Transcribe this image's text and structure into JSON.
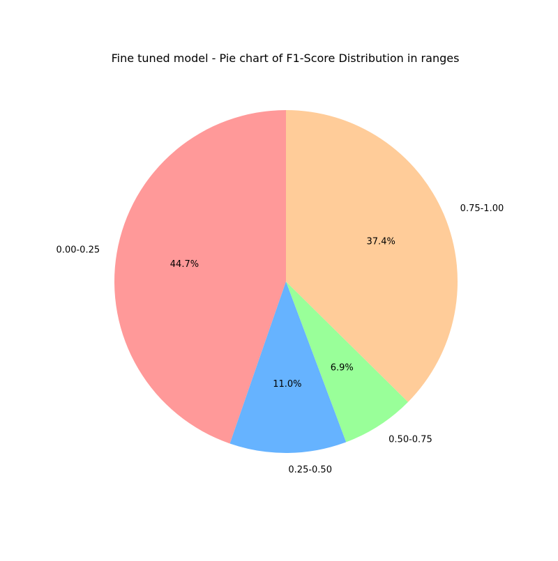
{
  "chart_data": {
    "type": "pie",
    "title": "Fine tuned model - Pie chart of F1-Score Distribution in ranges",
    "categories": [
      "0.00-0.25",
      "0.25-0.50",
      "0.50-0.75",
      "0.75-1.00"
    ],
    "values": [
      44.7,
      11.0,
      6.9,
      37.4
    ],
    "value_labels": [
      "44.7%",
      "11.0%",
      "6.9%",
      "37.4%"
    ],
    "colors": [
      "#ff9999",
      "#66b3ff",
      "#99ff99",
      "#ffcc99"
    ],
    "start_angle_deg": 90,
    "direction": "counterclockwise",
    "legend": "none"
  }
}
